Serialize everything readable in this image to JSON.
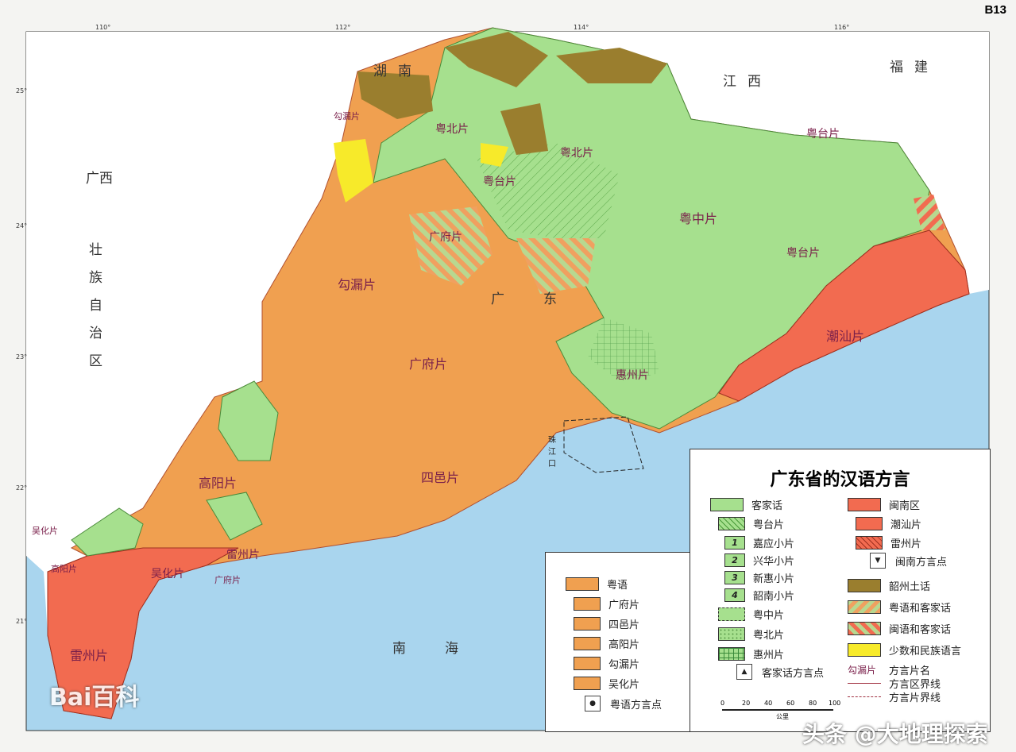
{
  "page_code": "B13",
  "legend": {
    "title": "广东省的汉语方言",
    "hakka": [
      {
        "label": "客家话",
        "color": "#a6e08e"
      },
      {
        "label": "粤台片",
        "color": "#a6e08e",
        "pattern": "diagonal"
      },
      {
        "label": "嘉应小片",
        "num": "1"
      },
      {
        "label": "兴华小片",
        "num": "2"
      },
      {
        "label": "新惠小片",
        "num": "3"
      },
      {
        "label": "韶南小片",
        "num": "4"
      },
      {
        "label": "粤中片",
        "pattern": "dashes"
      },
      {
        "label": "粤北片",
        "pattern": "dots"
      },
      {
        "label": "惠州片",
        "pattern": "grid"
      },
      {
        "label": "客家话方言点",
        "icon": "triangle"
      }
    ],
    "minnan": [
      {
        "label": "闽南区",
        "color": "#f26b50"
      },
      {
        "label": "潮汕片",
        "color": "#f26b50"
      },
      {
        "label": "雷州片",
        "color": "#f26b50",
        "pattern": "diagonal"
      },
      {
        "label": "闽南方言点",
        "icon": "inverted-triangle"
      }
    ],
    "other": [
      {
        "label": "韶州土话",
        "color": "#9a7e2e"
      },
      {
        "label": "粤语和客家话",
        "color": "#f0a060",
        "pattern": "stripes-green"
      },
      {
        "label": "闽语和客家话",
        "color": "#f26b50",
        "pattern": "stripes-green"
      },
      {
        "label": "少数和民族语言",
        "color": "#f7ea2a"
      }
    ],
    "symbols": [
      {
        "sample": "勾漏片",
        "label": "方言片名"
      },
      {
        "label": "方言区界线",
        "line": "solid"
      },
      {
        "label": "方言片界线",
        "line": "dashed"
      }
    ],
    "cantonese": [
      {
        "label": "粤语",
        "color": "#f0a050"
      },
      {
        "label": "广府片"
      },
      {
        "label": "四邑片"
      },
      {
        "label": "高阳片"
      },
      {
        "label": "勾漏片"
      },
      {
        "label": "吴化片"
      },
      {
        "label": "粤语方言点",
        "icon": "dot"
      }
    ],
    "scale": {
      "ticks": [
        "0",
        "20",
        "40",
        "60",
        "80",
        "100"
      ],
      "unit": "公里"
    }
  },
  "map": {
    "colors": {
      "sea": "#a9d5ee",
      "outside": "#ffffff",
      "cantonese": "#f0a050",
      "hakka": "#a6e08e",
      "minnan": "#f26b50",
      "shaozhou": "#9a7e2e",
      "minority": "#f7ea2a"
    },
    "provinces": [
      "湖南",
      "江西",
      "福建",
      "广西",
      "壮",
      "族",
      "自",
      "治",
      "区",
      "广",
      "东"
    ],
    "seas": [
      "南",
      "海",
      "珠江口"
    ],
    "dialect_labels": [
      "粤北片",
      "粤北片",
      "粤台片",
      "粤台片",
      "粤中片",
      "粤台片",
      "广府片",
      "广府片",
      "勾漏片",
      "高阳片",
      "四邑片",
      "吴化片",
      "雷州片",
      "雷州片",
      "潮汕片",
      "惠州片",
      "勾漏片",
      "高阳片",
      "吴化片",
      "广府片"
    ],
    "lon_ticks": [
      "110°",
      "112°",
      "114°",
      "116°"
    ],
    "lat_ticks": [
      "25°",
      "24°",
      "23°",
      "22°",
      "21°"
    ]
  },
  "watermarks": [
    "Bai百科",
    "头条 @大地理探索"
  ]
}
